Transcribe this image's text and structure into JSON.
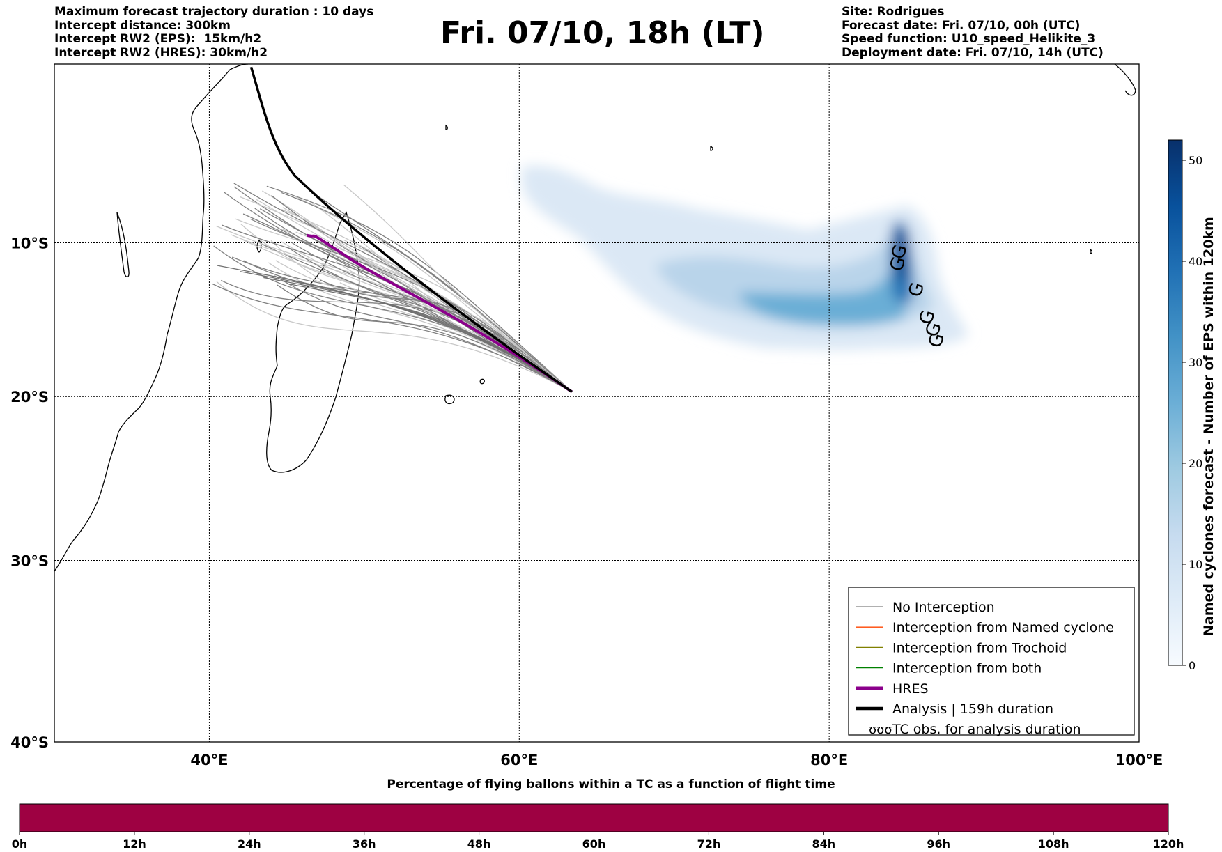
{
  "header": {
    "left_lines": [
      "Maximum forecast trajectory duration : 10 days",
      "Intercept distance: 300km",
      "Intercept RW2 (EPS):  15km/h2",
      "Intercept RW2 (HRES): 30km/h2"
    ],
    "title": "Fri. 07/10, 18h (LT)",
    "right_lines": [
      "Site: Rodrigues",
      "Forecast date: Fri. 07/10, 00h (UTC)",
      "Speed function: U10_speed_Helikite_3",
      "Deployment date: Fri. 07/10, 14h (UTC)"
    ]
  },
  "map": {
    "lon_range": [
      30,
      100
    ],
    "lat_range": [
      -40,
      2
    ],
    "lon_ticks": [
      {
        "value": 40,
        "label": "40°E"
      },
      {
        "value": 60,
        "label": "60°E"
      },
      {
        "value": 80,
        "label": "80°E"
      },
      {
        "value": 100,
        "label": "100°E"
      }
    ],
    "lat_ticks": [
      {
        "value": -10,
        "label": "10°S"
      },
      {
        "value": -20,
        "label": "20°S"
      },
      {
        "value": -30,
        "label": "30°S"
      },
      {
        "value": -40,
        "label": "40°S"
      }
    ],
    "grid": true,
    "release_point": {
      "lon": 63.4,
      "lat": -19.7
    },
    "colors": {
      "no_interception": "#808080",
      "named_cyclone": "#ff4500",
      "trochoid": "#808000",
      "both": "#008000",
      "hres": "#8b008b",
      "analysis": "#000000"
    }
  },
  "legend": {
    "items": [
      {
        "label": "No Interception",
        "color": "#808080",
        "style": "thin"
      },
      {
        "label": "Interception from Named cyclone",
        "color": "#ff4500",
        "style": "thin"
      },
      {
        "label": "Interception from Trochoid",
        "color": "#808000",
        "style": "thin"
      },
      {
        "label": "Interception from both",
        "color": "#008000",
        "style": "thin"
      },
      {
        "label": "HRES",
        "color": "#8b008b",
        "style": "thick"
      },
      {
        "label": "Analysis | 159h duration",
        "color": "#000000",
        "style": "thick"
      },
      {
        "label": "TC obs. for analysis duration",
        "color": "#000000",
        "style": "symbol"
      }
    ]
  },
  "colorbar": {
    "label": "Named cyclones forecast - Number of EPS within 120km",
    "ticks": [
      "0",
      "10",
      "20",
      "30",
      "40",
      "50"
    ],
    "range": [
      0,
      52
    ],
    "colors": [
      "#f7fbff",
      "#deebf7",
      "#c6dbef",
      "#9ecae1",
      "#6baed6",
      "#4292c6",
      "#2171b5",
      "#08519c",
      "#08306b"
    ]
  },
  "tc_obs_symbols": [
    {
      "lon": 84.9,
      "lat": -10.7
    },
    {
      "lon": 84.8,
      "lat": -11.5
    },
    {
      "lon": 86.0,
      "lat": -13.2
    },
    {
      "lon": 86.7,
      "lat": -15.0
    },
    {
      "lon": 87.1,
      "lat": -15.8
    },
    {
      "lon": 87.3,
      "lat": -16.5
    }
  ],
  "bottom_bar": {
    "title": "Percentage of flying ballons within a TC as a function of flight time",
    "color": "#9e0142",
    "ticks": [
      "0h",
      "12h",
      "24h",
      "36h",
      "48h",
      "60h",
      "72h",
      "84h",
      "96h",
      "108h",
      "120h"
    ]
  }
}
